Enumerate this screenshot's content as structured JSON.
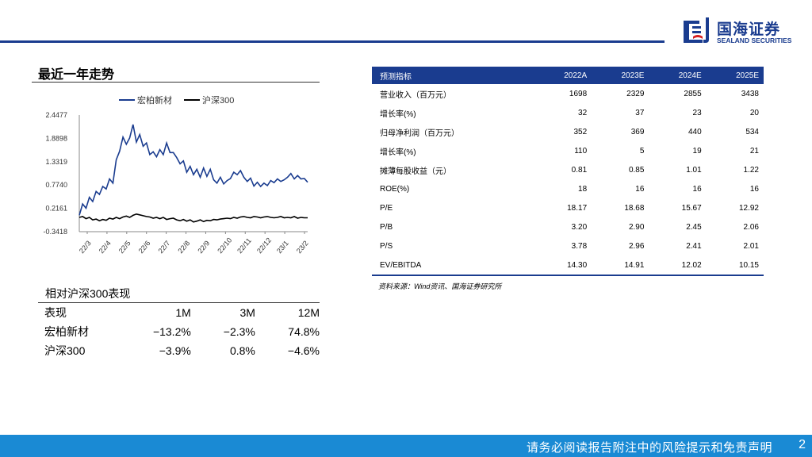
{
  "brand": {
    "name_cn": "国海证券",
    "name_en": "SEALAND SECURITIES"
  },
  "trend_title": "最近一年走势",
  "chart_data": {
    "type": "line",
    "title": "",
    "legend_position": "top",
    "x_ticks": [
      "22/3",
      "22/4",
      "22/5",
      "22/6",
      "22/7",
      "22/8",
      "22/9",
      "22/10",
      "22/11",
      "22/12",
      "23/1",
      "23/2"
    ],
    "y_ticks": [
      "2.4477",
      "1.8898",
      "1.3319",
      "0.7740",
      "0.2161",
      "-0.3418"
    ],
    "ylim": [
      -0.3418,
      2.4477
    ],
    "grid": false,
    "series": [
      {
        "name": "宏柏新材",
        "color": "#1a3c8f",
        "values": [
          0.05,
          0.32,
          0.22,
          0.48,
          0.38,
          0.62,
          0.55,
          0.74,
          0.68,
          0.92,
          0.82,
          1.38,
          1.58,
          1.92,
          1.75,
          1.9,
          2.22,
          1.8,
          1.98,
          1.7,
          1.78,
          1.5,
          1.57,
          1.45,
          1.62,
          1.5,
          1.78,
          1.55,
          1.55,
          1.43,
          1.28,
          1.35,
          1.08,
          1.22,
          1.02,
          1.15,
          0.96,
          1.18,
          0.98,
          1.15,
          0.9,
          0.82,
          0.96,
          0.8,
          0.88,
          0.93,
          1.08,
          1.02,
          1.12,
          0.96,
          0.86,
          0.94,
          0.75,
          0.84,
          0.74,
          0.82,
          0.76,
          0.88,
          0.83,
          0.92,
          0.86,
          0.9,
          0.96,
          1.05,
          0.92,
          1.0,
          0.92,
          0.93,
          0.84
        ]
      },
      {
        "name": "沪深300",
        "color": "#000000",
        "values": [
          0.0,
          0.02,
          -0.03,
          0.0,
          -0.06,
          -0.04,
          -0.08,
          -0.05,
          -0.07,
          -0.02,
          -0.04,
          0.0,
          -0.03,
          0.01,
          0.03,
          0.0,
          0.05,
          0.08,
          0.06,
          0.04,
          0.02,
          0.01,
          -0.02,
          0.0,
          -0.03,
          0.0,
          -0.05,
          -0.03,
          -0.02,
          -0.06,
          -0.08,
          -0.05,
          -0.09,
          -0.06,
          -0.11,
          -0.09,
          -0.06,
          -0.1,
          -0.07,
          -0.08,
          -0.05,
          -0.06,
          -0.04,
          -0.03,
          -0.02,
          -0.03,
          0.0,
          -0.02,
          0.01,
          0.02,
          0.0,
          -0.01,
          0.02,
          0.01,
          -0.01,
          0.01,
          0.02,
          0.0,
          -0.01,
          0.0,
          0.02,
          -0.01,
          0.0,
          -0.01,
          0.02,
          -0.02,
          0.0,
          -0.01,
          -0.01
        ]
      }
    ]
  },
  "relative": {
    "title": "相对沪深300表现",
    "headers": [
      "表现",
      "1M",
      "3M",
      "12M"
    ],
    "rows": [
      [
        "宏柏新材",
        "−13.2%",
        "−2.3%",
        "74.8%"
      ],
      [
        "沪深300",
        "−3.9%",
        "0.8%",
        "−4.6%"
      ]
    ]
  },
  "forecast": {
    "headers": [
      "预测指标",
      "2022A",
      "2023E",
      "2024E",
      "2025E"
    ],
    "rows": [
      [
        "营业收入（百万元）",
        "1698",
        "2329",
        "2855",
        "3438"
      ],
      [
        "增长率(%)",
        "32",
        "37",
        "23",
        "20"
      ],
      [
        "归母净利润（百万元）",
        "352",
        "369",
        "440",
        "534"
      ],
      [
        "增长率(%)",
        "110",
        "5",
        "19",
        "21"
      ],
      [
        "摊薄每股收益（元）",
        "0.81",
        "0.85",
        "1.01",
        "1.22"
      ],
      [
        "ROE(%)",
        "18",
        "16",
        "16",
        "16"
      ],
      [
        "P/E",
        "18.17",
        "18.68",
        "15.67",
        "12.92"
      ],
      [
        "P/B",
        "3.20",
        "2.90",
        "2.45",
        "2.06"
      ],
      [
        "P/S",
        "3.78",
        "2.96",
        "2.41",
        "2.01"
      ],
      [
        "EV/EBITDA",
        "14.30",
        "14.91",
        "12.02",
        "10.15"
      ]
    ],
    "source": "资料来源：Wind资讯、国海证券研究所"
  },
  "footer": {
    "disclaimer": "请务必阅读报告附注中的风险提示和免责声明",
    "page": "2"
  },
  "colors": {
    "brand_blue": "#1a3c8f",
    "footer_blue": "#1a8ad4"
  }
}
